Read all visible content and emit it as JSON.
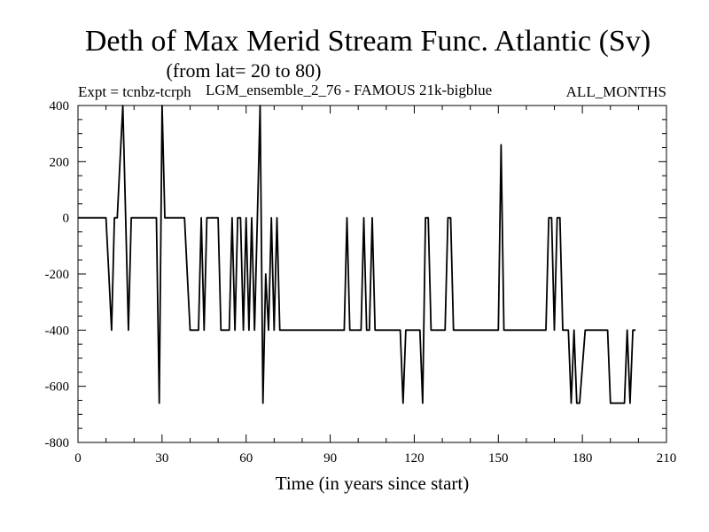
{
  "chart_data": {
    "type": "line",
    "title": "Deth of Max Merid Stream Func. Atlantic (Sv)",
    "subtitle": "(from lat= 20 to 80)",
    "expt_label": "Expt = tcnbz-tcrph",
    "run_label": "LGM_ensemble_2_76 - FAMOUS 21k-bigblue",
    "months_label": "ALL_MONTHS",
    "xlabel": "Time (in years since start)",
    "ylabel": "",
    "xlim": [
      0,
      210
    ],
    "ylim": [
      -800,
      400
    ],
    "xticks": [
      0,
      30,
      60,
      90,
      120,
      150,
      180,
      210
    ],
    "yticks": [
      400,
      200,
      0,
      -200,
      -400,
      -600,
      -800
    ],
    "xtick_labels": [
      "0",
      "30",
      "60",
      "90",
      "120",
      "150",
      "180",
      "210"
    ],
    "ytick_labels": [
      "400",
      "200",
      "0",
      "-200",
      "-400",
      "-600",
      "-800"
    ],
    "grid": false,
    "series": [
      {
        "color": "#000000",
        "x": [
          0,
          10,
          11,
          12,
          13,
          14,
          15,
          16,
          17,
          18,
          19,
          20,
          28,
          29,
          30,
          31,
          32,
          38,
          39,
          40,
          43,
          44,
          45,
          46,
          47,
          50,
          51,
          54,
          55,
          56,
          57,
          58,
          59,
          60,
          61,
          62,
          63,
          64,
          65,
          66,
          67,
          68,
          69,
          70,
          71,
          72,
          73,
          95,
          96,
          97,
          98,
          101,
          102,
          103,
          104,
          105,
          106,
          107,
          115,
          116,
          117,
          122,
          123,
          124,
          125,
          126,
          131,
          132,
          133,
          134,
          150,
          151,
          152,
          167,
          168,
          169,
          170,
          171,
          172,
          173,
          174,
          175,
          176,
          177,
          178,
          179,
          181,
          182,
          183,
          189,
          190,
          195,
          196,
          197,
          198,
          199
        ],
        "y": [
          0,
          0,
          -200,
          -400,
          0,
          0,
          200,
          400,
          0,
          -400,
          0,
          0,
          0,
          -660,
          400,
          0,
          0,
          0,
          -200,
          -400,
          -400,
          0,
          -400,
          0,
          0,
          0,
          -400,
          -400,
          0,
          -400,
          0,
          0,
          -400,
          0,
          -400,
          0,
          -400,
          0,
          400,
          -660,
          -200,
          -400,
          0,
          -400,
          0,
          -400,
          -400,
          -400,
          0,
          -400,
          -400,
          -400,
          0,
          -400,
          -400,
          0,
          -400,
          -400,
          -400,
          -660,
          -400,
          -400,
          -660,
          0,
          0,
          -400,
          -400,
          0,
          0,
          -400,
          -400,
          260,
          -400,
          -400,
          0,
          0,
          -400,
          0,
          0,
          -400,
          -400,
          -400,
          -660,
          -400,
          -660,
          -660,
          -400,
          -400,
          -400,
          -400,
          -660,
          -660,
          -400,
          -660,
          -400,
          -400
        ]
      }
    ]
  }
}
